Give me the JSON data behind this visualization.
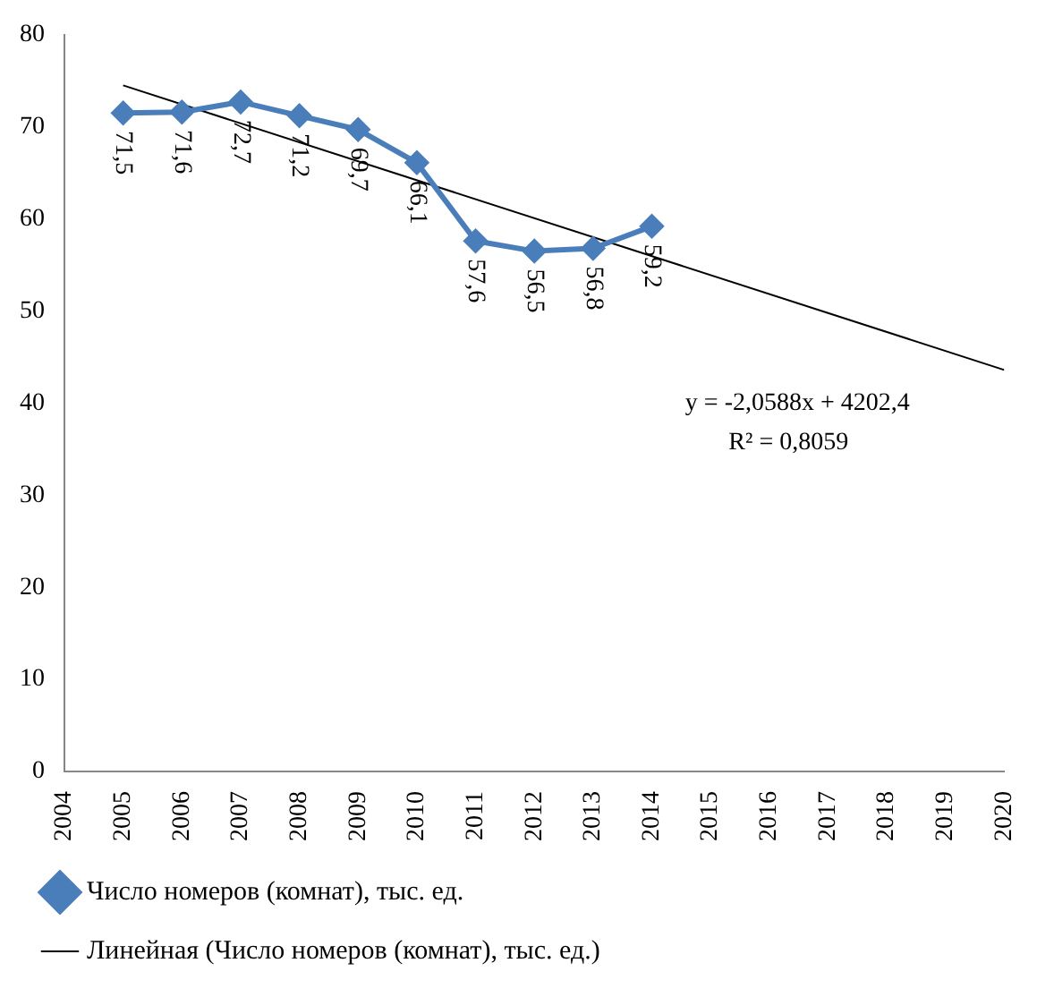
{
  "chart_data": {
    "type": "line",
    "x": [
      2005,
      2006,
      2007,
      2008,
      2009,
      2010,
      2011,
      2012,
      2013,
      2014
    ],
    "series": [
      {
        "name": "Число номеров (комнат), тыс. ед.",
        "color": "#4a7ebb",
        "marker": "diamond",
        "values": [
          71.5,
          71.6,
          72.7,
          71.2,
          69.7,
          66.1,
          57.6,
          56.5,
          56.8,
          59.2
        ],
        "value_labels": [
          "71,5",
          "71,6",
          "72,7",
          "71,2",
          "69,7",
          "66,1",
          "57,6",
          "56,5",
          "56,8",
          "59,2"
        ]
      },
      {
        "name": "Линейная (Число номеров (комнат), тыс. ед.)",
        "type": "line",
        "color": "#000000",
        "marker": "none",
        "x": [
          2005,
          2020
        ],
        "values": [
          74.5,
          43.6
        ]
      }
    ],
    "xlim": [
      2004,
      2020
    ],
    "xticks": [
      2004,
      2005,
      2006,
      2007,
      2008,
      2009,
      2010,
      2011,
      2012,
      2013,
      2014,
      2015,
      2016,
      2017,
      2018,
      2019,
      2020
    ],
    "ylim": [
      0,
      80
    ],
    "yticks": [
      0,
      10,
      20,
      30,
      40,
      50,
      60,
      70,
      80
    ],
    "grid": false,
    "legend": "bottom",
    "annotations": [
      "y = -2,0588x + 4202,4",
      "R² = 0,8059"
    ]
  }
}
